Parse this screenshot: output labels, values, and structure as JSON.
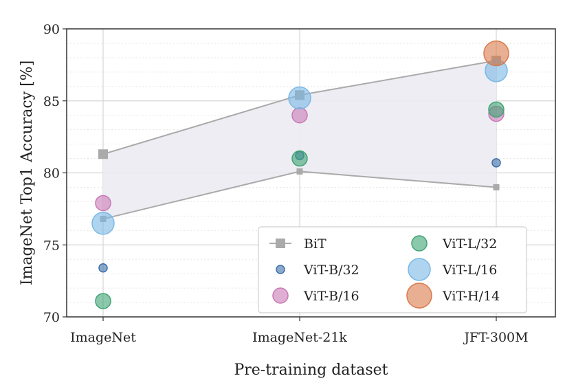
{
  "chart_data": {
    "type": "scatter",
    "xlabel": "Pre-training dataset",
    "ylabel": "ImageNet Top1 Accuracy [%]",
    "categories": [
      "ImageNet",
      "ImageNet-21k",
      "JFT-300M"
    ],
    "ylim": [
      70,
      90
    ],
    "yticks": [
      70,
      75,
      80,
      85,
      90
    ],
    "grid": true,
    "legend_position": "bottom-right",
    "bit_band": {
      "name": "BiT",
      "color": "#aaaaaa",
      "fill_color": "#ebebf2",
      "upper": [
        81.3,
        85.4,
        87.8
      ],
      "lower": [
        76.8,
        80.1,
        79.0
      ]
    },
    "series": [
      {
        "name": "ViT-B/32",
        "color": "#3d6fa8",
        "size": "small",
        "values": [
          73.4,
          81.2,
          80.7
        ]
      },
      {
        "name": "ViT-B/16",
        "color": "#c979b5",
        "size": "medium",
        "values": [
          77.9,
          84.0,
          84.1
        ]
      },
      {
        "name": "ViT-L/32",
        "color": "#3fa374",
        "size": "medium",
        "values": [
          71.1,
          81.0,
          84.4
        ]
      },
      {
        "name": "ViT-L/16",
        "color": "#7ab8e6",
        "size": "large",
        "values": [
          76.5,
          85.2,
          87.1
        ]
      },
      {
        "name": "ViT-H/14",
        "color": "#d9794a",
        "size": "xlarge",
        "values": [
          null,
          null,
          88.3
        ]
      }
    ],
    "legend": [
      {
        "name": "BiT",
        "marker": "square-line",
        "color": "#aaaaaa"
      },
      {
        "name": "ViT-B/32",
        "marker": "circle",
        "color": "#3d6fa8",
        "size": "small"
      },
      {
        "name": "ViT-B/16",
        "marker": "circle",
        "color": "#c979b5",
        "size": "medium"
      },
      {
        "name": "ViT-L/32",
        "marker": "circle",
        "color": "#3fa374",
        "size": "medium"
      },
      {
        "name": "ViT-L/16",
        "marker": "circle",
        "color": "#7ab8e6",
        "size": "large"
      },
      {
        "name": "ViT-H/14",
        "marker": "circle",
        "color": "#d9794a",
        "size": "xlarge"
      }
    ]
  }
}
